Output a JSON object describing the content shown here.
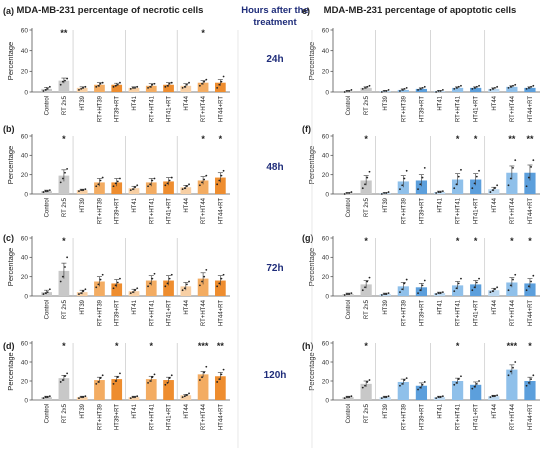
{
  "colors": {
    "gray": "#c8c8c8",
    "gray_line": "#555555",
    "orange_light": "#f7cfa4",
    "orange_mid": "#f3ac62",
    "orange_dark": "#ee8d2f",
    "blue_light": "#bcd8f0",
    "blue_mid": "#8fc0ea",
    "blue_dark": "#5c9fdc",
    "time_label": "#1f2d7a",
    "axis": "#555555",
    "sep": "#bdbdbd"
  },
  "header": {
    "left_title": "MDA-MB-231 percentage of necrotic cells",
    "center_title_line1": "Hours after the",
    "center_title_line2": "treatment",
    "right_title": "MDA-MB-231 percentage of apoptotic cells"
  },
  "times": [
    "24h",
    "48h",
    "72h",
    "120h"
  ],
  "chart_data": [
    {
      "id": "a",
      "type": "bar",
      "panel_label": "(a)",
      "ylabel": "Percentage",
      "ylim": [
        0,
        60
      ],
      "yticks": [
        0,
        20,
        40,
        60
      ],
      "palette": "orange",
      "categories": [
        "Control",
        "RT 2x5",
        "HT39",
        "RT+HT39",
        "HT39+RT",
        "HT41",
        "RT+HT41",
        "HT41+RT",
        "HT44",
        "RT+HT44",
        "HT44+RT"
      ],
      "values": [
        3,
        11,
        4,
        7,
        7,
        4,
        6,
        7,
        6,
        9,
        9
      ],
      "errors": [
        1.5,
        2.5,
        1,
        2,
        1.5,
        1,
        2,
        2,
        2,
        2,
        3
      ],
      "points": [
        [
          1,
          2,
          3,
          5
        ],
        [
          7,
          10,
          11,
          13
        ],
        [
          2,
          3,
          4,
          5
        ],
        [
          5,
          6,
          8,
          9
        ],
        [
          5,
          6,
          7,
          9
        ],
        [
          3,
          4,
          4,
          5
        ],
        [
          4,
          5,
          7,
          8
        ],
        [
          5,
          6,
          8,
          9
        ],
        [
          4,
          5,
          7,
          9
        ],
        [
          6,
          8,
          10,
          12
        ],
        [
          4,
          7,
          10,
          15
        ]
      ],
      "annotations": [
        {
          "index": 1,
          "text": "**"
        },
        {
          "index": 9,
          "text": "*"
        }
      ]
    },
    {
      "id": "b",
      "type": "bar",
      "panel_label": "(b)",
      "ylabel": "Percentage",
      "ylim": [
        0,
        60
      ],
      "yticks": [
        0,
        20,
        40,
        60
      ],
      "palette": "orange",
      "categories": [
        "Control",
        "RT 2x5",
        "HT39",
        "RT+HT39",
        "HT39+RT",
        "HT41",
        "RT+HT41",
        "HT41+RT",
        "HT44",
        "RT+HT44",
        "HT44+RT"
      ],
      "values": [
        3,
        19,
        4,
        12,
        12,
        6,
        12,
        13,
        7,
        14,
        17
      ],
      "errors": [
        1,
        6,
        1,
        4,
        4,
        2,
        4,
        4,
        2,
        4,
        5
      ],
      "points": [
        [
          2,
          3,
          3,
          4
        ],
        [
          12,
          16,
          22,
          26
        ],
        [
          3,
          4,
          4,
          5
        ],
        [
          8,
          10,
          14,
          17
        ],
        [
          8,
          11,
          13,
          16
        ],
        [
          4,
          5,
          7,
          9
        ],
        [
          8,
          10,
          14,
          16
        ],
        [
          9,
          11,
          14,
          17
        ],
        [
          5,
          6,
          8,
          10
        ],
        [
          9,
          12,
          15,
          19
        ],
        [
          10,
          14,
          19,
          24
        ]
      ],
      "annotations": [
        {
          "index": 1,
          "text": "*"
        },
        {
          "index": 9,
          "text": "*"
        },
        {
          "index": 10,
          "text": "*"
        }
      ]
    },
    {
      "id": "c",
      "type": "bar",
      "panel_label": "(c)",
      "ylabel": "Percentage",
      "ylim": [
        0,
        60
      ],
      "yticks": [
        0,
        20,
        40,
        60
      ],
      "palette": "orange",
      "categories": [
        "Control",
        "RT 2x5",
        "HT39",
        "RT+HT39",
        "HT39+RT",
        "HT41",
        "RT+HT41",
        "HT41+RT",
        "HT44",
        "RT+HT44",
        "HT44+RT"
      ],
      "values": [
        4,
        26,
        4,
        15,
        13,
        5,
        16,
        16,
        10,
        18,
        16
      ],
      "errors": [
        2,
        8,
        2,
        5,
        4,
        2,
        5,
        5,
        4,
        6,
        5
      ],
      "points": [
        [
          2,
          3,
          4,
          7
        ],
        [
          15,
          20,
          30,
          40
        ],
        [
          2,
          3,
          5,
          7
        ],
        [
          9,
          12,
          17,
          22
        ],
        [
          8,
          11,
          14,
          18
        ],
        [
          3,
          4,
          6,
          8
        ],
        [
          10,
          13,
          18,
          23
        ],
        [
          10,
          13,
          18,
          22
        ],
        [
          6,
          8,
          12,
          15
        ],
        [
          11,
          15,
          20,
          27
        ],
        [
          10,
          13,
          18,
          22
        ]
      ],
      "annotations": [
        {
          "index": 1,
          "text": "*"
        }
      ]
    },
    {
      "id": "d",
      "type": "bar",
      "panel_label": "(d)",
      "ylabel": "Percentage",
      "ylim": [
        0,
        60
      ],
      "yticks": [
        0,
        20,
        40,
        60
      ],
      "palette": "orange",
      "categories": [
        "Control",
        "RT 2x5",
        "HT39",
        "RT+HT39",
        "HT39+RT",
        "HT41",
        "RT+HT41",
        "HT41+RT",
        "HT44",
        "RT+HT44",
        "HT44+RT"
      ],
      "values": [
        3,
        23,
        3,
        21,
        22,
        3,
        22,
        21,
        5,
        27,
        25
      ],
      "errors": [
        1,
        3,
        1,
        3,
        3,
        1,
        3,
        3,
        1,
        3,
        4
      ],
      "points": [
        [
          2,
          3,
          3,
          4
        ],
        [
          19,
          21,
          25,
          28
        ],
        [
          2,
          3,
          3,
          4
        ],
        [
          17,
          19,
          23,
          26
        ],
        [
          17,
          20,
          24,
          28
        ],
        [
          2,
          3,
          3,
          4
        ],
        [
          18,
          20,
          24,
          27
        ],
        [
          16,
          18,
          23,
          26
        ],
        [
          3,
          4,
          5,
          7
        ],
        [
          21,
          24,
          29,
          35
        ],
        [
          19,
          22,
          27,
          32
        ]
      ],
      "annotations": [
        {
          "index": 1,
          "text": "*"
        },
        {
          "index": 4,
          "text": "*"
        },
        {
          "index": 6,
          "text": "*"
        },
        {
          "index": 9,
          "text": "***"
        },
        {
          "index": 10,
          "text": "**"
        }
      ]
    },
    {
      "id": "e",
      "type": "bar",
      "panel_label": "e)",
      "ylabel": "Percentage",
      "ylim": [
        0,
        60
      ],
      "yticks": [
        0,
        20,
        40,
        60
      ],
      "palette": "blue",
      "categories": [
        "Control",
        "RT 2x5",
        "HT39",
        "RT+HT39",
        "HT39+RT",
        "HT41",
        "RT+HT41",
        "HT41+RT",
        "HT44",
        "RT+HT44",
        "HT44+RT"
      ],
      "values": [
        1,
        4,
        1,
        2,
        3,
        1,
        4,
        4,
        3,
        5,
        4
      ],
      "errors": [
        0.5,
        1,
        0.5,
        1,
        1,
        0.5,
        1,
        1,
        1,
        1,
        1
      ],
      "points": [
        [
          0,
          1,
          1,
          2
        ],
        [
          3,
          4,
          5,
          6
        ],
        [
          0,
          1,
          1,
          2
        ],
        [
          1,
          2,
          3,
          4
        ],
        [
          2,
          3,
          4,
          5
        ],
        [
          0,
          1,
          1,
          2
        ],
        [
          3,
          4,
          5,
          6
        ],
        [
          3,
          4,
          5,
          6
        ],
        [
          2,
          3,
          4,
          5
        ],
        [
          4,
          5,
          6,
          7
        ],
        [
          3,
          4,
          5,
          6
        ]
      ],
      "annotations": []
    },
    {
      "id": "f",
      "type": "bar",
      "panel_label": "(f)",
      "ylabel": "Percentage",
      "ylim": [
        0,
        60
      ],
      "yticks": [
        0,
        20,
        40,
        60
      ],
      "palette": "blue",
      "categories": [
        "Control",
        "RT 2x5",
        "HT39",
        "RT+HT39",
        "HT39+RT",
        "HT41",
        "RT+HT41",
        "HT41+RT",
        "HT44",
        "RT+HT44",
        "HT44+RT"
      ],
      "values": [
        1,
        14,
        1,
        13,
        14,
        2,
        15,
        15,
        5,
        22,
        22
      ],
      "errors": [
        0.5,
        5,
        0.5,
        6,
        6,
        1,
        6,
        6,
        2,
        7,
        8
      ],
      "points": [
        [
          0,
          1,
          1,
          2
        ],
        [
          6,
          10,
          17,
          23
        ],
        [
          0,
          1,
          1,
          2
        ],
        [
          5,
          9,
          16,
          24
        ],
        [
          5,
          10,
          17,
          27
        ],
        [
          1,
          2,
          2,
          3
        ],
        [
          6,
          10,
          18,
          25
        ],
        [
          6,
          11,
          18,
          24
        ],
        [
          2,
          4,
          6,
          9
        ],
        [
          9,
          16,
          27,
          35
        ],
        [
          8,
          17,
          28,
          35
        ]
      ],
      "annotations": [
        {
          "index": 1,
          "text": "*"
        },
        {
          "index": 6,
          "text": "*"
        },
        {
          "index": 7,
          "text": "*"
        },
        {
          "index": 9,
          "text": "**"
        },
        {
          "index": 10,
          "text": "**"
        }
      ]
    },
    {
      "id": "g",
      "type": "bar",
      "panel_label": "(g)",
      "ylabel": "Percentage",
      "ylim": [
        0,
        60
      ],
      "yticks": [
        0,
        20,
        40,
        60
      ],
      "palette": "blue",
      "categories": [
        "Control",
        "RT 2x5",
        "HT39",
        "RT+HT39",
        "HT39+RT",
        "HT41",
        "RT+HT41",
        "HT41+RT",
        "HT44",
        "RT+HT44",
        "HT44+RT"
      ],
      "values": [
        2,
        12,
        2,
        10,
        9,
        3,
        11,
        12,
        6,
        14,
        13
      ],
      "errors": [
        1,
        4,
        1,
        4,
        4,
        1,
        4,
        4,
        2,
        5,
        5
      ],
      "points": [
        [
          1,
          2,
          2,
          3
        ],
        [
          6,
          9,
          15,
          19
        ],
        [
          1,
          2,
          2,
          3
        ],
        [
          4,
          7,
          13,
          17
        ],
        [
          3,
          6,
          11,
          16
        ],
        [
          2,
          3,
          3,
          4
        ],
        [
          5,
          8,
          13,
          18
        ],
        [
          6,
          9,
          14,
          18
        ],
        [
          4,
          5,
          7,
          9
        ],
        [
          6,
          11,
          17,
          22
        ],
        [
          6,
          10,
          15,
          21
        ]
      ],
      "annotations": [
        {
          "index": 1,
          "text": "*"
        },
        {
          "index": 6,
          "text": "*"
        },
        {
          "index": 7,
          "text": "*"
        },
        {
          "index": 9,
          "text": "*"
        },
        {
          "index": 10,
          "text": "*"
        }
      ]
    },
    {
      "id": "h",
      "type": "bar",
      "panel_label": "(h)",
      "ylabel": "Percentage",
      "ylim": [
        0,
        60
      ],
      "yticks": [
        0,
        20,
        40,
        60
      ],
      "palette": "blue",
      "categories": [
        "Control",
        "RT 2x5",
        "HT39",
        "RT+HT39",
        "HT39+RT",
        "HT41",
        "RT+HT41",
        "HT41+RT",
        "HT44",
        "RT+HT44",
        "HT44+RT"
      ],
      "values": [
        3,
        17,
        3,
        19,
        15,
        3,
        20,
        16,
        4,
        32,
        20
      ],
      "errors": [
        1,
        3,
        1,
        3,
        3,
        1,
        3,
        3,
        1,
        5,
        4
      ],
      "points": [
        [
          2,
          3,
          3,
          4
        ],
        [
          13,
          15,
          19,
          21
        ],
        [
          2,
          3,
          3,
          4
        ],
        [
          15,
          17,
          21,
          23
        ],
        [
          11,
          13,
          16,
          19
        ],
        [
          2,
          3,
          3,
          4
        ],
        [
          16,
          18,
          22,
          25
        ],
        [
          12,
          14,
          17,
          20
        ],
        [
          3,
          4,
          4,
          5
        ],
        [
          26,
          30,
          34,
          40
        ],
        [
          15,
          18,
          22,
          26
        ]
      ],
      "annotations": [
        {
          "index": 1,
          "text": "*"
        },
        {
          "index": 6,
          "text": "*"
        },
        {
          "index": 9,
          "text": "***"
        },
        {
          "index": 10,
          "text": "*"
        }
      ]
    }
  ]
}
